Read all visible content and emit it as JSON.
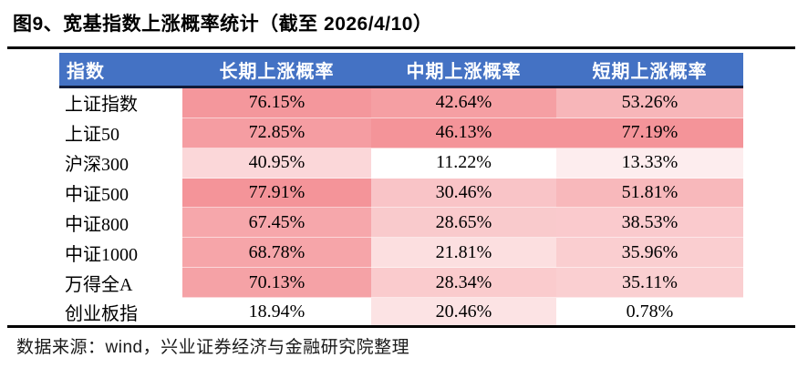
{
  "title": "图9、宽基指数上涨概率统计（截至 2026/4/10）",
  "source_note": "数据来源：wind，兴业证券经济与金融研究院整理",
  "colors": {
    "header_bg": "#4472C4",
    "header_text": "#FFFFFF",
    "header_underline": "#101B3A",
    "rule": "#000000",
    "heat_max": "#F49499",
    "heat_min": "#FFFFFF"
  },
  "chart_data": {
    "type": "table",
    "title": "图9、宽基指数上涨概率统计（截至 2026/4/10）",
    "columns": [
      "指数",
      "长期上涨概率",
      "中期上涨概率",
      "短期上涨概率"
    ],
    "note": "每列按白(最小值)到红(最大值)条件格式着色",
    "rows": [
      {
        "label": "上证指数",
        "cells": [
          {
            "v": "76.15%",
            "bg": "#F4979C"
          },
          {
            "v": "42.64%",
            "bg": "#F59FA3"
          },
          {
            "v": "53.26%",
            "bg": "#F7B6B9"
          }
        ]
      },
      {
        "label": "上证50",
        "cells": [
          {
            "v": "72.85%",
            "bg": "#F59DA2"
          },
          {
            "v": "46.13%",
            "bg": "#F49499"
          },
          {
            "v": "77.19%",
            "bg": "#F49499"
          }
        ]
      },
      {
        "label": "沪深300",
        "cells": [
          {
            "v": "40.95%",
            "bg": "#FBD7D9"
          },
          {
            "v": "11.22%",
            "bg": "#FFFFFF"
          },
          {
            "v": "13.33%",
            "bg": "#FDEDEE"
          }
        ]
      },
      {
        "label": "中证500",
        "cells": [
          {
            "v": "77.91%",
            "bg": "#F49499"
          },
          {
            "v": "30.46%",
            "bg": "#F9C4C7"
          },
          {
            "v": "51.81%",
            "bg": "#F8B8BB"
          }
        ]
      },
      {
        "label": "中证800",
        "cells": [
          {
            "v": "67.45%",
            "bg": "#F6A7AB"
          },
          {
            "v": "28.65%",
            "bg": "#F9CACC"
          },
          {
            "v": "38.53%",
            "bg": "#FACACD"
          }
        ]
      },
      {
        "label": "中证1000",
        "cells": [
          {
            "v": "68.78%",
            "bg": "#F6A5A9"
          },
          {
            "v": "21.81%",
            "bg": "#FCDFE0"
          },
          {
            "v": "35.96%",
            "bg": "#FACED0"
          }
        ]
      },
      {
        "label": "万得全A",
        "cells": [
          {
            "v": "70.13%",
            "bg": "#F5A2A6"
          },
          {
            "v": "28.34%",
            "bg": "#FACBCD"
          },
          {
            "v": "35.11%",
            "bg": "#FACFD1"
          }
        ]
      },
      {
        "label": "创业板指",
        "cells": [
          {
            "v": "18.94%",
            "bg": "#FFFFFF"
          },
          {
            "v": "20.46%",
            "bg": "#FCE3E4"
          },
          {
            "v": "0.78%",
            "bg": "#FFFFFF"
          }
        ]
      }
    ]
  }
}
